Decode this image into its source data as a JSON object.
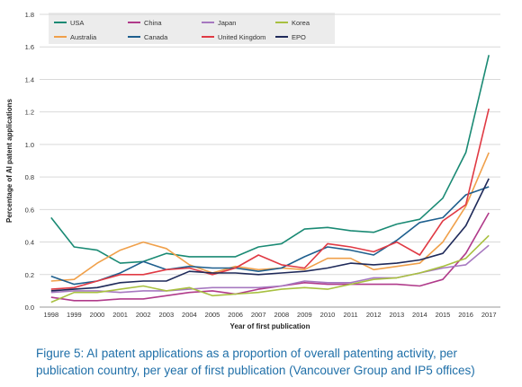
{
  "chart_data": {
    "type": "line",
    "ylabel": "Percentage of AI patent applications",
    "xlabel": "Year of first publication",
    "ylim": [
      0,
      1.8
    ],
    "yticks": [
      "0.0",
      "0.2",
      "0.4",
      "0.6",
      "0.8",
      "1.0",
      "1.2",
      "1.4",
      "1.6",
      "1.8"
    ],
    "categories": [
      "1998",
      "1999",
      "2000",
      "2001",
      "2002",
      "2003",
      "2004",
      "2005",
      "2006",
      "2007",
      "2008",
      "2009",
      "2010",
      "2011",
      "2012",
      "2013",
      "2014",
      "2015",
      "2016",
      "2017"
    ],
    "grid": "horizontal",
    "legend_position": "top-left",
    "series": [
      {
        "name": "USA",
        "color": "#1a8a74",
        "values": [
          0.55,
          0.37,
          0.35,
          0.27,
          0.28,
          0.33,
          0.31,
          0.31,
          0.31,
          0.37,
          0.39,
          0.48,
          0.49,
          0.47,
          0.46,
          0.51,
          0.54,
          0.67,
          0.95,
          1.55
        ]
      },
      {
        "name": "China",
        "color": "#b03a8a",
        "values": [
          0.06,
          0.04,
          0.04,
          0.05,
          0.05,
          0.07,
          0.09,
          0.1,
          0.08,
          0.11,
          0.13,
          0.15,
          0.14,
          0.14,
          0.14,
          0.14,
          0.13,
          0.17,
          0.33,
          0.58
        ]
      },
      {
        "name": "Japan",
        "color": "#a678c0",
        "values": [
          0.09,
          0.1,
          0.1,
          0.09,
          0.1,
          0.1,
          0.11,
          0.12,
          0.12,
          0.12,
          0.13,
          0.16,
          0.15,
          0.15,
          0.18,
          0.18,
          0.21,
          0.24,
          0.26,
          0.38
        ]
      },
      {
        "name": "Korea",
        "color": "#a8c040",
        "values": [
          0.03,
          0.09,
          0.09,
          0.11,
          0.13,
          0.1,
          0.12,
          0.07,
          0.08,
          0.09,
          0.11,
          0.12,
          0.11,
          0.14,
          0.17,
          0.18,
          0.21,
          0.25,
          0.3,
          0.44
        ]
      },
      {
        "name": "Australia",
        "color": "#f0a04a",
        "values": [
          0.16,
          0.17,
          0.27,
          0.35,
          0.4,
          0.36,
          0.26,
          0.21,
          0.25,
          0.23,
          0.24,
          0.23,
          0.3,
          0.3,
          0.23,
          0.25,
          0.27,
          0.4,
          0.62,
          0.95
        ]
      },
      {
        "name": "Canada",
        "color": "#1e5f8e",
        "values": [
          0.19,
          0.14,
          0.16,
          0.21,
          0.28,
          0.23,
          0.25,
          0.24,
          0.24,
          0.22,
          0.24,
          0.31,
          0.37,
          0.35,
          0.32,
          0.41,
          0.52,
          0.55,
          0.69,
          0.74
        ]
      },
      {
        "name": "United Kingdom",
        "color": "#e03a44",
        "values": [
          0.11,
          0.12,
          0.16,
          0.2,
          0.2,
          0.23,
          0.24,
          0.2,
          0.24,
          0.32,
          0.26,
          0.24,
          0.39,
          0.37,
          0.34,
          0.4,
          0.32,
          0.53,
          0.63,
          1.22
        ]
      },
      {
        "name": "EPO",
        "color": "#1f2a5a",
        "values": [
          0.1,
          0.11,
          0.12,
          0.15,
          0.16,
          0.16,
          0.22,
          0.21,
          0.21,
          0.2,
          0.21,
          0.22,
          0.24,
          0.27,
          0.26,
          0.27,
          0.29,
          0.33,
          0.5,
          0.79
        ]
      }
    ]
  },
  "caption": "Figure 5: AI patent applications as a proportion of overall patenting activity, per publication country, per year of first publication (Vancouver Group and IP5 offices)"
}
